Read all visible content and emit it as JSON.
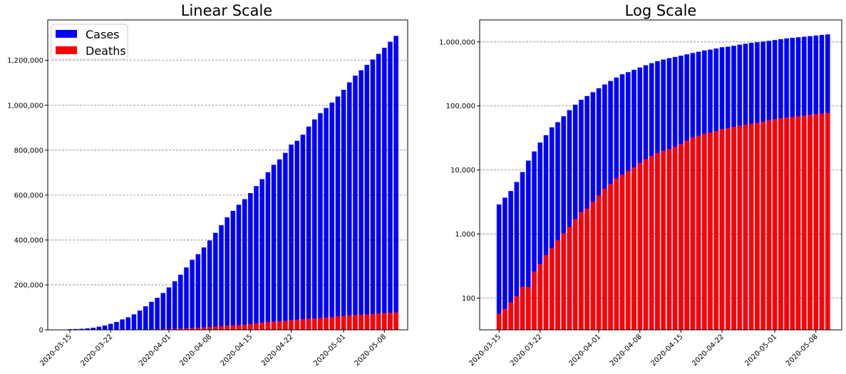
{
  "chart_data": [
    {
      "type": "bar",
      "title": "Linear Scale",
      "scale": "linear",
      "xlabel": "",
      "ylabel": "",
      "x_tick_labels": [
        "2020-03-15",
        "2020-03-22",
        "2020-04-01",
        "2020-04-08",
        "2020-04-15",
        "2020-04-22",
        "2020-05-01",
        "2020-05-08"
      ],
      "y_tick_labels": [
        "0",
        "200,000",
        "400,000",
        "600,000",
        "800,000",
        "1,000,000",
        "1,200,000"
      ],
      "ylim": [
        0,
        1380000
      ],
      "grid": "horizontal dashed",
      "legend": {
        "placement": "top-left",
        "entries": [
          "Cases",
          "Deaths"
        ]
      },
      "stacking": "overlaid",
      "series": [
        {
          "name": "Cases",
          "color": "#0000ff"
        },
        {
          "name": "Deaths",
          "color": "#ff0000"
        }
      ]
    },
    {
      "type": "bar",
      "title": "Log Scale",
      "scale": "log",
      "xlabel": "",
      "ylabel": "",
      "x_tick_labels": [
        "2020-03-15",
        "2020-03-22",
        "2020-04-01",
        "2020-04-08",
        "2020-04-15",
        "2020-04-22",
        "2020-05-01",
        "2020-05-08"
      ],
      "y_tick_labels": [
        "100",
        "1,000",
        "10,000",
        "100,000",
        "1,000,000"
      ],
      "ylim": [
        32,
        2200000
      ],
      "grid": "horizontal dashed",
      "stacking": "overlaid",
      "series": [
        {
          "name": "Cases",
          "color": "#0000ff"
        },
        {
          "name": "Deaths",
          "color": "#ff0000"
        }
      ]
    }
  ],
  "dates": [
    "2020-03-15",
    "2020-03-16",
    "2020-03-17",
    "2020-03-18",
    "2020-03-19",
    "2020-03-20",
    "2020-03-21",
    "2020-03-22",
    "2020-03-23",
    "2020-03-24",
    "2020-03-25",
    "2020-03-26",
    "2020-03-27",
    "2020-03-28",
    "2020-03-29",
    "2020-03-30",
    "2020-03-31",
    "2020-04-01",
    "2020-04-02",
    "2020-04-03",
    "2020-04-04",
    "2020-04-05",
    "2020-04-06",
    "2020-04-07",
    "2020-04-08",
    "2020-04-09",
    "2020-04-10",
    "2020-04-11",
    "2020-04-12",
    "2020-04-13",
    "2020-04-14",
    "2020-04-15",
    "2020-04-16",
    "2020-04-17",
    "2020-04-18",
    "2020-04-19",
    "2020-04-20",
    "2020-04-21",
    "2020-04-22",
    "2020-04-23",
    "2020-04-24",
    "2020-04-25",
    "2020-04-26",
    "2020-04-27",
    "2020-04-28",
    "2020-04-29",
    "2020-04-30",
    "2020-05-01",
    "2020-05-02",
    "2020-05-03",
    "2020-05-04",
    "2020-05-05",
    "2020-05-06",
    "2020-05-07",
    "2020-05-08",
    "2020-05-09",
    "2020-05-10"
  ],
  "cases": [
    2900,
    3700,
    4700,
    6500,
    9300,
    14000,
    19500,
    26800,
    35000,
    46400,
    55800,
    69000,
    86000,
    104700,
    124700,
    143000,
    164000,
    189000,
    216500,
    245600,
    277900,
    312200,
    337000,
    367000,
    398000,
    432000,
    466000,
    501000,
    530000,
    557000,
    582000,
    609000,
    640000,
    671000,
    702000,
    735000,
    759000,
    788000,
    825000,
    842000,
    869000,
    905000,
    937000,
    965000,
    988000,
    1012000,
    1039000,
    1069000,
    1102000,
    1132000,
    1156000,
    1180000,
    1204000,
    1229000,
    1256000,
    1283000,
    1309000
  ],
  "deaths": [
    57,
    68,
    86,
    108,
    150,
    150,
    260,
    340,
    470,
    610,
    800,
    1030,
    1300,
    1700,
    2200,
    2500,
    3200,
    4000,
    5100,
    6100,
    7400,
    8500,
    9600,
    11000,
    12900,
    14800,
    16600,
    18500,
    20000,
    21200,
    23100,
    25400,
    28800,
    32400,
    34300,
    36800,
    38500,
    40400,
    43600,
    45100,
    47300,
    49200,
    50900,
    52800,
    54600,
    56400,
    60100,
    62400,
    64400,
    65800,
    67300,
    68800,
    70600,
    72900,
    74500,
    76200,
    78000
  ]
}
